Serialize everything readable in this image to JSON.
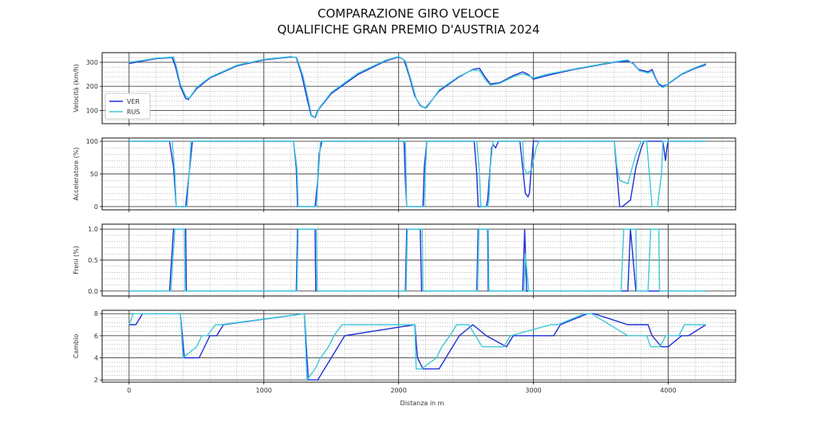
{
  "title_line1": "COMPARAZIONE GIRO VELOCE",
  "title_line2": "QUALIFICHE GRAN PREMIO D'AUSTRIA 2024",
  "xlabel": "Distanza in m",
  "x_ticks": [
    "0",
    "1000",
    "2000",
    "3000",
    "4000"
  ],
  "colors": {
    "VER": "#1f2fd6",
    "RUS": "#3ec9d8"
  },
  "chart_data": [
    {
      "type": "line",
      "ylabel": "Velocità (km/h)",
      "ylim": [
        45,
        340
      ],
      "yticks": [
        "100",
        "200",
        "300"
      ],
      "ytick_values": [
        100,
        200,
        300
      ],
      "xlim": [
        -200,
        4500
      ],
      "legend": {
        "placement": "lower-left",
        "entries": [
          "VER",
          "RUS"
        ]
      },
      "series": [
        {
          "name": "VER",
          "x": [
            0,
            100,
            200,
            320,
            345,
            380,
            420,
            440,
            500,
            600,
            800,
            1000,
            1200,
            1240,
            1280,
            1320,
            1350,
            1380,
            1400,
            1500,
            1700,
            1900,
            2000,
            2040,
            2080,
            2120,
            2160,
            2200,
            2300,
            2450,
            2550,
            2600,
            2640,
            2680,
            2750,
            2850,
            2920,
            2960,
            3000,
            3100,
            3300,
            3500,
            3600,
            3700,
            3740,
            3780,
            3850,
            3880,
            3910,
            3930,
            3960,
            4000,
            4100,
            4200,
            4280
          ],
          "y": [
            295,
            305,
            315,
            320,
            280,
            200,
            150,
            145,
            190,
            235,
            285,
            310,
            322,
            320,
            250,
            150,
            80,
            70,
            100,
            170,
            250,
            305,
            322,
            310,
            240,
            160,
            120,
            110,
            180,
            240,
            270,
            275,
            240,
            210,
            215,
            245,
            260,
            250,
            230,
            245,
            270,
            290,
            300,
            305,
            295,
            270,
            260,
            270,
            230,
            210,
            200,
            210,
            250,
            275,
            290
          ]
        },
        {
          "name": "RUS",
          "x": [
            0,
            100,
            200,
            330,
            350,
            380,
            420,
            445,
            500,
            600,
            800,
            1000,
            1200,
            1245,
            1290,
            1330,
            1355,
            1385,
            1410,
            1500,
            1700,
            1900,
            2000,
            2050,
            2090,
            2130,
            2170,
            2210,
            2300,
            2450,
            2550,
            2600,
            2640,
            2680,
            2750,
            2850,
            2920,
            2960,
            3000,
            3100,
            3300,
            3500,
            3600,
            3700,
            3745,
            3785,
            3850,
            3880,
            3915,
            3935,
            3965,
            4000,
            4100,
            4200,
            4280
          ],
          "y": [
            300,
            308,
            317,
            322,
            285,
            210,
            160,
            150,
            195,
            238,
            288,
            312,
            324,
            318,
            245,
            145,
            75,
            72,
            110,
            175,
            255,
            308,
            324,
            305,
            230,
            150,
            115,
            112,
            185,
            243,
            268,
            265,
            230,
            205,
            212,
            240,
            252,
            245,
            235,
            250,
            272,
            292,
            302,
            310,
            290,
            265,
            255,
            262,
            220,
            200,
            195,
            212,
            252,
            278,
            295
          ]
        }
      ]
    },
    {
      "type": "line",
      "ylabel": "Acceleratore (%)",
      "ylim": [
        -5,
        105
      ],
      "yticks": [
        "0",
        "50",
        "100"
      ],
      "ytick_values": [
        0,
        50,
        100
      ],
      "xlim": [
        -200,
        4500
      ],
      "series": [
        {
          "name": "VER",
          "x": [
            0,
            300,
            330,
            350,
            420,
            440,
            470,
            1220,
            1240,
            1250,
            1380,
            1400,
            1410,
            1430,
            2040,
            2050,
            2060,
            2180,
            2190,
            2200,
            2210,
            2560,
            2580,
            2590,
            2650,
            2660,
            2690,
            2700,
            2720,
            2740,
            2900,
            2920,
            2940,
            2960,
            2970,
            3000,
            3010,
            3600,
            3620,
            3640,
            3660,
            3720,
            3760,
            3800,
            3820,
            3960,
            3980,
            3990,
            4000,
            4280
          ],
          "y": [
            100,
            100,
            60,
            0,
            0,
            40,
            100,
            100,
            60,
            0,
            0,
            40,
            80,
            100,
            100,
            40,
            0,
            0,
            60,
            80,
            100,
            100,
            50,
            0,
            0,
            10,
            90,
            95,
            90,
            100,
            100,
            60,
            20,
            15,
            20,
            100,
            100,
            100,
            50,
            0,
            0,
            10,
            60,
            90,
            100,
            100,
            70,
            90,
            100,
            100
          ]
        },
        {
          "name": "RUS",
          "x": [
            0,
            320,
            340,
            350,
            430,
            460,
            1220,
            1245,
            1255,
            1390,
            1405,
            1420,
            2050,
            2060,
            2190,
            2200,
            2210,
            2580,
            2600,
            2610,
            2660,
            2670,
            2680,
            2700,
            2920,
            2930,
            2950,
            2980,
            2990,
            3020,
            3040,
            3600,
            3620,
            3640,
            3700,
            3720,
            3760,
            3800,
            3840,
            3860,
            3880,
            3920,
            3950,
            3960,
            4280
          ],
          "y": [
            100,
            100,
            50,
            0,
            0,
            100,
            100,
            60,
            0,
            0,
            50,
            100,
            100,
            0,
            0,
            60,
            100,
            100,
            50,
            0,
            0,
            10,
            60,
            100,
            100,
            60,
            50,
            55,
            60,
            90,
            100,
            100,
            60,
            40,
            35,
            50,
            80,
            100,
            100,
            50,
            0,
            0,
            50,
            100,
            100
          ]
        }
      ]
    },
    {
      "type": "line",
      "ylabel": "Freni (%)",
      "ylim": [
        -0.08,
        1.08
      ],
      "yticks": [
        "0.0",
        "0.5",
        "1.0"
      ],
      "ytick_values": [
        0,
        0.5,
        1
      ],
      "xlim": [
        -200,
        4500
      ],
      "series": [
        {
          "name": "VER",
          "x": [
            0,
            300,
            330,
            420,
            425,
            1240,
            1250,
            1380,
            1385,
            2050,
            2060,
            2160,
            2170,
            2580,
            2590,
            2660,
            2665,
            2920,
            2935,
            2950,
            2960,
            3700,
            3720,
            3760,
            3765,
            3900,
            3905,
            4280
          ],
          "y": [
            0,
            0,
            1,
            1,
            0,
            0,
            1,
            1,
            0,
            0,
            1,
            1,
            0,
            0,
            1,
            1,
            0,
            0,
            1,
            0,
            0,
            0,
            1,
            0,
            0,
            0,
            0,
            0
          ]
        },
        {
          "name": "RUS",
          "x": [
            0,
            310,
            340,
            410,
            415,
            1245,
            1255,
            1390,
            1395,
            2055,
            2065,
            2175,
            2180,
            2585,
            2595,
            2665,
            2670,
            2930,
            2940,
            2965,
            2970,
            3650,
            3670,
            3760,
            3765,
            3850,
            3870,
            3930,
            3935,
            4280
          ],
          "y": [
            0,
            0,
            1,
            1,
            0,
            0,
            1,
            1,
            0,
            0,
            1,
            1,
            0,
            0,
            1,
            1,
            0,
            0,
            0.6,
            0,
            0,
            0,
            1,
            1,
            0,
            0,
            1,
            1,
            0,
            0
          ]
        }
      ]
    },
    {
      "type": "line",
      "ylabel": "Cambio",
      "ylim": [
        1.8,
        8.3
      ],
      "yticks": [
        "2",
        "4",
        "6",
        "8"
      ],
      "ytick_values": [
        2,
        4,
        6,
        8
      ],
      "xlim": [
        -200,
        4500
      ],
      "series": [
        {
          "name": "VER",
          "x": [
            0,
            50,
            100,
            380,
            410,
            520,
            560,
            600,
            650,
            700,
            1300,
            1330,
            1400,
            1450,
            1500,
            1550,
            1600,
            2120,
            2140,
            2180,
            2300,
            2350,
            2400,
            2450,
            2550,
            2650,
            2800,
            2850,
            3150,
            3200,
            3400,
            3450,
            3700,
            3730,
            3850,
            3880,
            3950,
            4000,
            4100,
            4150,
            4280
          ],
          "y": [
            7,
            7,
            8,
            8,
            4,
            4,
            5,
            6,
            6,
            7,
            8,
            2,
            2,
            3,
            4,
            5,
            6,
            7,
            4,
            3,
            3,
            4,
            5,
            6,
            7,
            6,
            5,
            6,
            6,
            7,
            8,
            8,
            7,
            7,
            7,
            6,
            5,
            5,
            6,
            6,
            7
          ]
        },
        {
          "name": "RUS",
          "x": [
            0,
            30,
            80,
            380,
            400,
            500,
            540,
            580,
            640,
            680,
            1300,
            1320,
            1380,
            1420,
            1480,
            1520,
            1580,
            2120,
            2130,
            2170,
            2280,
            2320,
            2380,
            2430,
            2520,
            2620,
            2780,
            2830,
            3130,
            3180,
            3380,
            3430,
            3700,
            3720,
            3840,
            3870,
            3940,
            3980,
            4080,
            4120,
            4280
          ],
          "y": [
            7,
            8,
            8,
            8,
            4,
            5,
            6,
            6,
            7,
            7,
            8,
            2,
            3,
            4,
            5,
            6,
            7,
            7,
            3,
            3,
            4,
            5,
            6,
            7,
            7,
            5,
            5,
            6,
            7,
            7,
            8,
            8,
            6,
            6,
            6,
            5,
            5,
            6,
            6,
            7,
            7
          ]
        }
      ]
    }
  ]
}
